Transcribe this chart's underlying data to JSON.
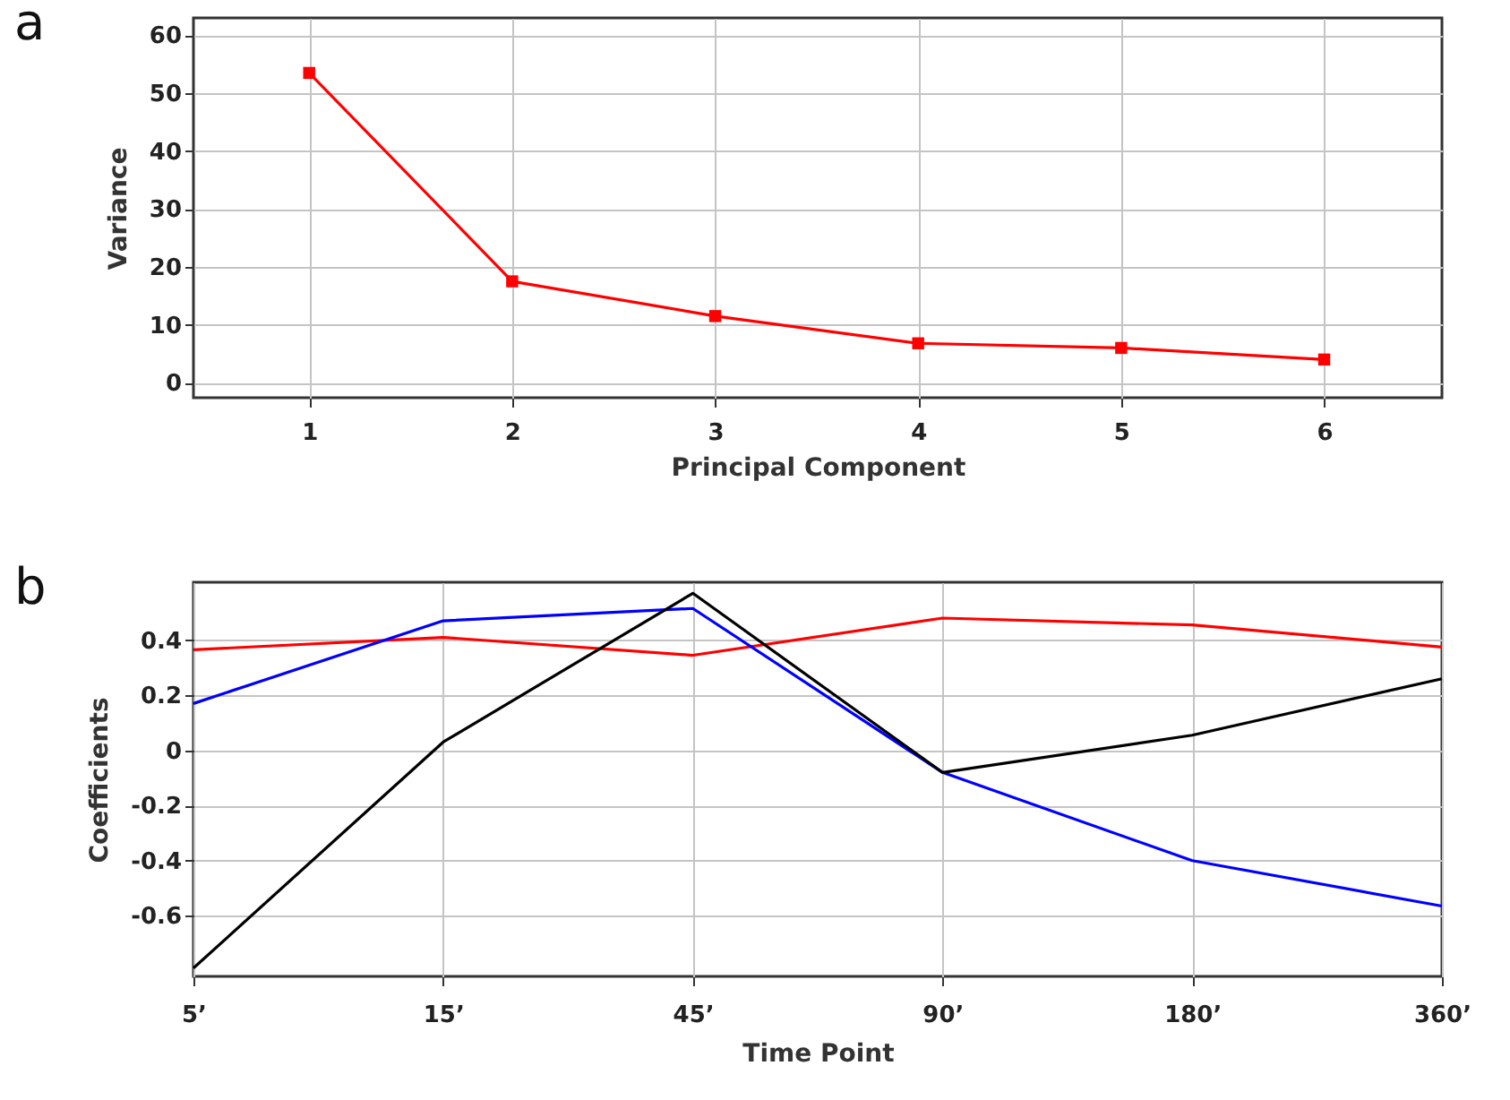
{
  "chart_data": [
    {
      "type": "line",
      "title": "a",
      "xlabel": "Principal Component",
      "ylabel": "Variance",
      "x": [
        1,
        2,
        3,
        4,
        5,
        6
      ],
      "xlim": [
        0.43,
        6.58
      ],
      "xticks": [
        1,
        2,
        3,
        4,
        5,
        6
      ],
      "ylim": [
        -2.6,
        63
      ],
      "yticks": [
        0,
        10,
        20,
        30,
        40,
        50,
        60
      ],
      "grid": true,
      "marker": "square",
      "series": [
        {
          "color": "#ff0000",
          "values": [
            53.5,
            17.5,
            11.5,
            6.8,
            6,
            4
          ]
        }
      ]
    },
    {
      "type": "line",
      "title": "b",
      "xlabel": "Time Point",
      "ylabel": "Coefficients",
      "categories": [
        "5’",
        "15’",
        "45’",
        "90’",
        "180’",
        "360’"
      ],
      "ylim": [
        -0.82,
        0.61
      ],
      "yticks": [
        {
          "value": 0.4,
          "label": "0.4"
        },
        {
          "value": 0.2,
          "label": "0.2"
        },
        0,
        {
          "value": -0.2,
          "label": "-0.2"
        },
        {
          "value": -0.4,
          "label": "-0.4"
        },
        {
          "value": -0.6,
          "label": "-0.6"
        }
      ],
      "grid": true,
      "series": [
        {
          "color": "#ff0000",
          "values": [
            0.365,
            0.41,
            0.345,
            0.48,
            0.455,
            0.375
          ]
        },
        {
          "color": "#0000ff",
          "values": [
            0.17,
            0.47,
            0.515,
            -0.08,
            -0.4,
            -0.565
          ]
        },
        {
          "color": "#000000",
          "values": [
            -0.79,
            0.03,
            0.57,
            -0.08,
            0.055,
            0.26
          ]
        }
      ]
    }
  ]
}
